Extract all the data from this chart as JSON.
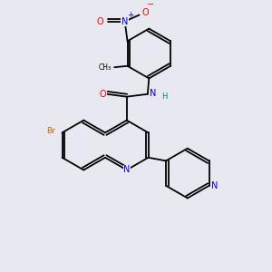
{
  "background_color": "#e8e8f0",
  "bond_color": "#000000",
  "atom_colors": {
    "N": "#0000cd",
    "O": "#ff0000",
    "Br": "#cc6600",
    "H": "#008080",
    "C": "#000000"
  },
  "figsize": [
    3.0,
    3.0
  ],
  "dpi": 100
}
